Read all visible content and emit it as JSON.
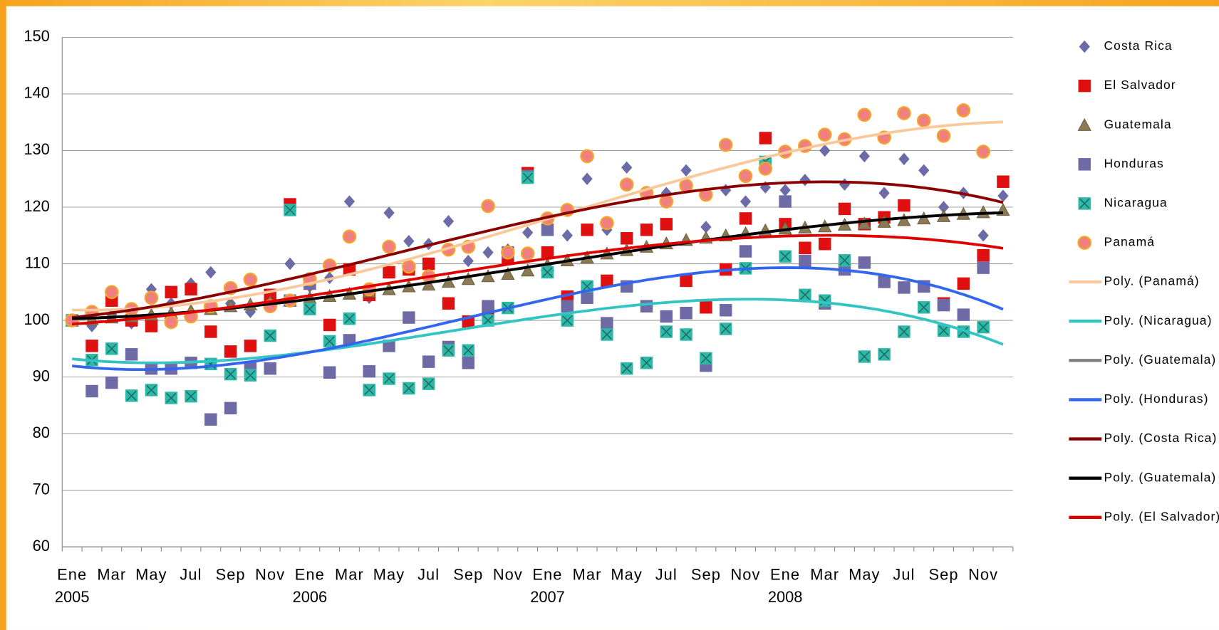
{
  "chart_data": {
    "type": "scatter",
    "categories": [
      "Ene",
      null,
      "Mar",
      null,
      "May",
      null,
      "Jul",
      null,
      "Sep",
      null,
      "Nov",
      null,
      "Ene",
      null,
      "Mar",
      null,
      "May",
      null,
      "Jul",
      null,
      "Sep",
      null,
      "Nov",
      null,
      "Ene",
      null,
      "Mar",
      null,
      "May",
      null,
      "Jul",
      null,
      "Sep",
      null,
      "Nov",
      null,
      "Ene",
      null,
      "Mar",
      null,
      "May",
      null,
      "Jul",
      null,
      "Sep",
      null,
      "Nov",
      null
    ],
    "year_labels": [
      "2005",
      "2006",
      "2007",
      "2008"
    ],
    "ylim": [
      60,
      150
    ],
    "yticks": [
      60,
      70,
      80,
      90,
      100,
      110,
      120,
      130,
      140,
      150
    ],
    "grid": true,
    "trendline_order": 3,
    "series": [
      {
        "name": "Costa Rica",
        "color": "#6b6ba8",
        "marker": "diamond",
        "values": [
          100,
          99,
          101,
          99.5,
          105.5,
          103,
          106.5,
          108.5,
          103,
          101.5,
          104,
          110,
          106,
          107.5,
          121,
          104,
          119,
          114,
          113.5,
          117.5,
          110.5,
          112,
          112.5,
          115.5,
          116,
          115,
          125,
          116,
          127,
          122.5,
          122.5,
          126.5,
          116.5,
          123,
          121,
          123.5,
          123,
          124.8,
          130,
          124,
          129,
          122.5,
          128.5,
          126.5,
          120,
          122.5,
          115,
          122
        ]
      },
      {
        "name": "El Salvador",
        "color": "#e01010",
        "marker": "square",
        "values": [
          100,
          95.5,
          103.5,
          100,
          99,
          105,
          105.5,
          98,
          94.5,
          95.5,
          104.5,
          120.5,
          106.5,
          99.2,
          109,
          104.5,
          108.5,
          109,
          110,
          103,
          99.8,
          102,
          111,
          126,
          112,
          104.2,
          116,
          107,
          114.5,
          116,
          117,
          107,
          102.3,
          109,
          118,
          132.2,
          117,
          112.8,
          113.5,
          119.7,
          117,
          118.2,
          120.3,
          106,
          103,
          106.5,
          111.5,
          124.5
        ]
      },
      {
        "name": "Guatemala",
        "color": "#8b7a55",
        "marker": "triangle",
        "values": [
          100,
          100.2,
          100.5,
          100.7,
          101,
          101.3,
          101.7,
          102,
          102.5,
          102.8,
          103.2,
          103.5,
          104,
          104.3,
          104.7,
          105.1,
          105.5,
          106,
          106.3,
          106.8,
          107.3,
          107.8,
          108.2,
          108.8,
          109.8,
          110.6,
          111.1,
          111.8,
          112.4,
          113,
          113.6,
          114.2,
          114.6,
          115,
          115.4,
          115.9,
          116.2,
          116.4,
          116.6,
          116.9,
          117.1,
          117.4,
          117.7,
          118,
          118.4,
          118.8,
          119.1,
          119.5
        ]
      },
      {
        "name": "Honduras",
        "color": "#6e6aa6",
        "marker": "square",
        "values": [
          100,
          87.5,
          89,
          94,
          91.5,
          91.5,
          92.5,
          82.5,
          84.5,
          91.5,
          91.5,
          103.5,
          106.5,
          90.8,
          96.5,
          91,
          95.5,
          100.5,
          92.7,
          95.3,
          92.5,
          102.5,
          112,
          125.5,
          116,
          102.5,
          104,
          99.5,
          106,
          102.5,
          100.7,
          101.3,
          92,
          101.8,
          112.2,
          127.5,
          121,
          110.5,
          103,
          109,
          110.2,
          106.8,
          105.8,
          106,
          102.7,
          101,
          109.3,
          null
        ]
      },
      {
        "name": "Nicaragua",
        "color": "#2eb8a8",
        "marker": "square-x",
        "values": [
          100,
          93,
          95,
          86.7,
          87.7,
          86.3,
          86.6,
          92.3,
          90.5,
          90.3,
          97.3,
          119.5,
          102,
          96.3,
          100.3,
          87.7,
          89.7,
          88,
          88.8,
          94.7,
          94.7,
          100,
          102.2,
          125.2,
          108.5,
          100,
          106,
          97.5,
          91.5,
          92.5,
          98,
          97.5,
          93.3,
          98.5,
          109.2,
          128,
          111.3,
          104.5,
          103.5,
          110.6,
          93.6,
          94,
          98,
          102.3,
          98.2,
          98,
          98.8,
          null
        ]
      },
      {
        "name": "Panamá",
        "color": "#f08080",
        "marker": "circle",
        "values": [
          100,
          101.5,
          105,
          102,
          104,
          99.7,
          100.7,
          102.5,
          105.7,
          107.2,
          102.5,
          103.5,
          107.3,
          109.7,
          114.8,
          105.5,
          113,
          109.5,
          107.8,
          112.5,
          113,
          120.2,
          112,
          111.8,
          118,
          119.5,
          129,
          117.2,
          124,
          122.5,
          121,
          123.8,
          122.2,
          131,
          125.5,
          126.8,
          129.8,
          130.8,
          132.8,
          132,
          136.3,
          132.3,
          136.6,
          135.3,
          132.6,
          137.1,
          129.8,
          null
        ]
      }
    ],
    "trendlines": [
      {
        "name": "Poly. (Panamá)",
        "color": "#f9c89b",
        "series": 5
      },
      {
        "name": "Poly. (Nicaragua)",
        "color": "#33c4c4",
        "series": 4
      },
      {
        "name": "Poly. (Guatemala)",
        "color": "#808080",
        "series": 2
      },
      {
        "name": "Poly. (Honduras)",
        "color": "#3366ee",
        "series": 3
      },
      {
        "name": "Poly. (Costa Rica)",
        "color": "#8b0000",
        "series": 0
      },
      {
        "name": "Poly. (Guatemala)",
        "color": "#000000",
        "series": 2
      },
      {
        "name": "Poly. (El Salvador)",
        "color": "#e00000",
        "series": 1
      }
    ]
  }
}
